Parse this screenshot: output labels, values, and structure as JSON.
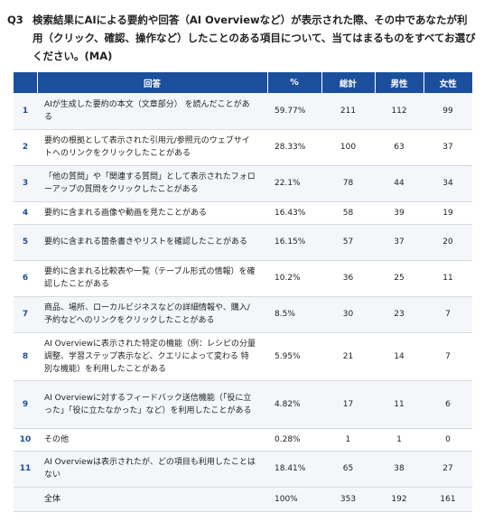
{
  "question": {
    "label": "Q3",
    "text": "検索結果にAIによる要約や回答（AI Overviewなど）が表示された際、その中であなたが利用（クリック、確認、操作など）したことのある項目について、当てはまるものをすべてお選びください。(MA)"
  },
  "table": {
    "headers": {
      "answer": "回答",
      "pct": "%",
      "total": "総計",
      "male": "男性",
      "female": "女性"
    },
    "rows": [
      {
        "no": "1",
        "answer": "AIが生成した要約の本文（文章部分） を読んだことがある",
        "pct": "59.77%",
        "total": "211",
        "male": "112",
        "female": "99"
      },
      {
        "no": "2",
        "answer": "要約の根拠として表示された引用元/参照元のウェブサイトへのリンクをクリックしたことがある",
        "pct": "28.33%",
        "total": "100",
        "male": "63",
        "female": "37"
      },
      {
        "no": "3",
        "answer": "「他の質問」や「関連する質問」として表示されたフォローアップの質問をクリックしたことがある",
        "pct": "22.1%",
        "total": "78",
        "male": "44",
        "female": "34"
      },
      {
        "no": "4",
        "answer": "要約に含まれる画像や動画を見たことがある",
        "pct": "16.43%",
        "total": "58",
        "male": "39",
        "female": "19"
      },
      {
        "no": "5",
        "answer": "要約に含まれる箇条書きやリストを確認したことがある",
        "pct": "16.15%",
        "total": "57",
        "male": "37",
        "female": "20"
      },
      {
        "no": "6",
        "answer": "要約に含まれる比較表や一覧（テーブル形式の情報）を確認したことがある",
        "pct": "10.2%",
        "total": "36",
        "male": "25",
        "female": "11"
      },
      {
        "no": "7",
        "answer": "商品、場所、ローカルビジネスなどの詳細情報や、購入/予約などへのリンクをクリックしたことがある",
        "pct": "8.5%",
        "total": "30",
        "male": "23",
        "female": "7"
      },
      {
        "no": "8",
        "answer": "AI Overviewに表示された特定の機能（例：レシピの分量 調整、学習ステップ表示など、クエリによって変わる 特別な機能）を利用したことがある",
        "pct": "5.95%",
        "total": "21",
        "male": "14",
        "female": "7"
      },
      {
        "no": "9",
        "answer": "AI Overviewに対するフィードバック送信機能（「役に立った」「役に立たなかった」など）を利用したことがある",
        "pct": "4.82%",
        "total": "17",
        "male": "11",
        "female": "6"
      },
      {
        "no": "10",
        "answer": "その他",
        "pct": "0.28%",
        "total": "1",
        "male": "1",
        "female": "0"
      },
      {
        "no": "11",
        "answer": "AI Overviewは表示されたが、どの項目も利用したことはない",
        "pct": "18.41%",
        "total": "65",
        "male": "38",
        "female": "27"
      }
    ],
    "total_row": {
      "label": "全体",
      "pct": "100%",
      "total": "353",
      "male": "192",
      "female": "161"
    }
  }
}
